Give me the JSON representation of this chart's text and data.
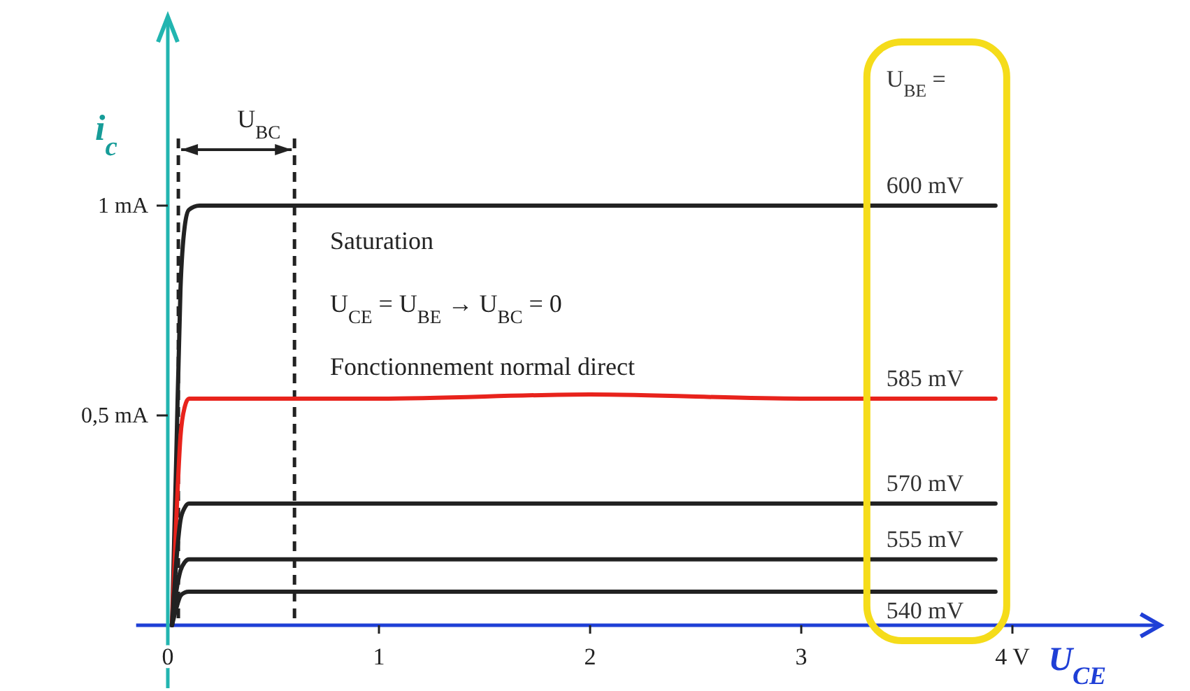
{
  "chart_data": {
    "type": "line",
    "xlabel": "U$_{CE}$",
    "ylabel": "i$_{c}$",
    "legend_title": "U$_{BE}$ =",
    "x": [
      0.02,
      0.04,
      0.06,
      0.08,
      0.1,
      0.15,
      0.6,
      1,
      2,
      3,
      3.92
    ],
    "xlim": [
      -0.15,
      4.7
    ],
    "ylim": [
      -0.15,
      1.45
    ],
    "xticks": [
      0,
      1,
      2,
      3,
      {
        "value": 4,
        "label": "4 V"
      }
    ],
    "yticks": [
      {
        "value": 0.5,
        "label": "0,5 mA"
      },
      {
        "value": 1,
        "label": "1 mA"
      }
    ],
    "series": [
      {
        "name": "600 mV",
        "color": "#222222",
        "values": [
          0,
          0.4,
          0.8,
          0.95,
          0.99,
          1,
          1,
          1,
          1,
          1,
          1
        ]
      },
      {
        "name": "585 mV",
        "color": "#e8231c",
        "values": [
          0,
          0.25,
          0.45,
          0.52,
          0.54,
          0.54,
          0.54,
          0.54,
          0.55,
          0.54,
          0.54
        ]
      },
      {
        "name": "570 mV",
        "color": "#222222",
        "values": [
          0,
          0.15,
          0.25,
          0.28,
          0.29,
          0.29,
          0.29,
          0.29,
          0.29,
          0.29,
          0.29
        ]
      },
      {
        "name": "555 mV",
        "color": "#222222",
        "values": [
          0,
          0.08,
          0.13,
          0.15,
          0.157,
          0.157,
          0.157,
          0.157,
          0.157,
          0.157,
          0.157
        ]
      },
      {
        "name": "540 mV",
        "color": "#222222",
        "values": [
          0,
          0.04,
          0.07,
          0.078,
          0.08,
          0.08,
          0.08,
          0.08,
          0.08,
          0.08,
          0.08
        ]
      }
    ],
    "line_style": "solid",
    "ref_lines": [
      {
        "axis": "x",
        "value": 0.05,
        "line_style": "dashed",
        "color": "#222222"
      },
      {
        "axis": "x",
        "value": 0.6,
        "label": "U$_{BC}$",
        "line_style": "dashed",
        "color": "#222222"
      }
    ],
    "annotations": [
      "Saturation",
      "U$_{CE}$ = U$_{BE}$ → U$_{BC}$ = 0",
      "Fonctionnement normal direct"
    ]
  }
}
